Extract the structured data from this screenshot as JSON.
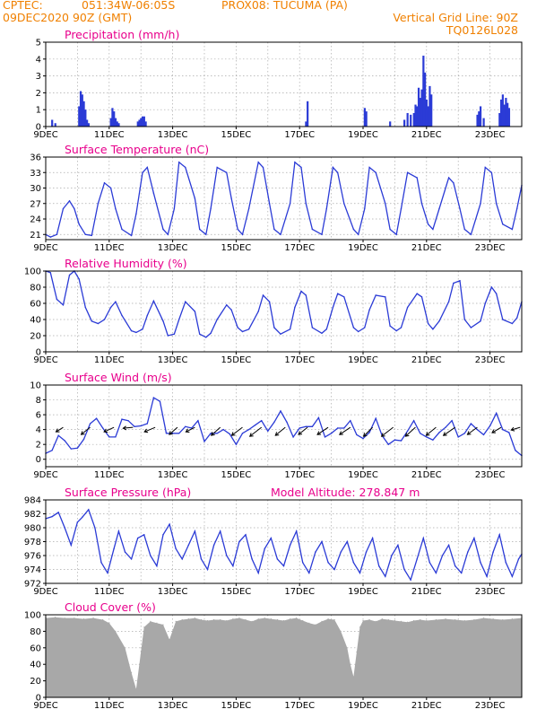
{
  "header": {
    "source": "CPTEC:",
    "coords": "051:34W-06:05S",
    "station": "PROX08: TUCUMA (PA)",
    "run": "09DEC2020 90Z (GMT)",
    "grid_note": "Vertical Grid Line: 90Z",
    "product_code": "TQ0126L028"
  },
  "x_ticks": [
    "9DEC",
    "11DEC",
    "13DEC",
    "15DEC",
    "17DEC",
    "19DEC",
    "21DEC",
    "23DEC"
  ],
  "colors": {
    "title": "#e8008c",
    "header": "#f08000",
    "series": "#2b3bd6",
    "cloud": "#a8a8a8",
    "grid": "#aaaaaa"
  },
  "chart_data": [
    {
      "id": "precip",
      "type": "bar",
      "title": "Precipitation (mm/h)",
      "ylim": [
        0,
        5
      ],
      "yticks": [
        0,
        1,
        2,
        3,
        4,
        5
      ],
      "x": [
        0.2,
        0.3,
        1.05,
        1.1,
        1.15,
        1.2,
        1.25,
        1.3,
        1.35,
        2.05,
        2.1,
        2.15,
        2.2,
        2.25,
        2.3,
        2.9,
        2.95,
        3.0,
        3.05,
        3.1,
        3.15,
        8.2,
        8.25,
        10.05,
        10.1,
        10.85,
        11.3,
        11.4,
        11.5,
        11.6,
        11.65,
        11.7,
        11.75,
        11.8,
        11.85,
        11.9,
        11.95,
        12.0,
        12.05,
        12.1,
        12.15,
        13.6,
        13.65,
        13.7,
        13.8,
        14.3,
        14.35,
        14.4,
        14.45,
        14.5,
        14.55,
        14.6
      ],
      "values": [
        0.4,
        0.2,
        1.2,
        2.1,
        1.9,
        1.5,
        1.0,
        0.4,
        0.2,
        0.5,
        1.1,
        0.9,
        0.5,
        0.3,
        0.2,
        0.3,
        0.4,
        0.5,
        0.6,
        0.6,
        0.3,
        0.3,
        1.5,
        1.1,
        0.9,
        0.3,
        0.4,
        0.8,
        0.7,
        0.8,
        1.3,
        1.2,
        2.3,
        1.7,
        2.2,
        4.2,
        3.2,
        1.6,
        1.2,
        2.4,
        1.9,
        0.7,
        0.9,
        1.2,
        0.5,
        0.8,
        1.6,
        1.9,
        1.3,
        1.7,
        1.4,
        1.1
      ]
    },
    {
      "id": "temp",
      "type": "line",
      "title": "Surface Temperature (nC)",
      "ylim": [
        20,
        36
      ],
      "yticks": [
        21,
        24,
        27,
        30,
        33,
        36
      ],
      "x": [
        0,
        0.15,
        0.35,
        0.55,
        0.75,
        0.9,
        1.05,
        1.25,
        1.45,
        1.65,
        1.85,
        2.05,
        2.2,
        2.4,
        2.7,
        2.85,
        3.05,
        3.2,
        3.4,
        3.7,
        3.85,
        4.05,
        4.2,
        4.4,
        4.7,
        4.85,
        5.05,
        5.2,
        5.4,
        5.7,
        5.85,
        6.05,
        6.2,
        6.4,
        6.7,
        6.85,
        7.05,
        7.2,
        7.4,
        7.7,
        7.85,
        8.05,
        8.2,
        8.4,
        8.7,
        8.85,
        9.05,
        9.2,
        9.4,
        9.7,
        9.85,
        10.05,
        10.2,
        10.4,
        10.7,
        10.85,
        11.05,
        11.2,
        11.4,
        11.7,
        11.85,
        12.05,
        12.2,
        12.4,
        12.7,
        12.85,
        13.05,
        13.2,
        13.4,
        13.7,
        13.85,
        14.05,
        14.2,
        14.4,
        14.7,
        14.85,
        15.0
      ],
      "values": [
        21,
        20.5,
        21,
        26,
        27.5,
        26,
        23,
        21,
        20.8,
        27,
        31,
        30,
        26,
        22,
        20.8,
        25,
        33,
        34,
        29,
        22,
        21,
        26,
        35,
        34,
        28,
        22,
        21,
        26,
        34,
        33,
        28,
        22,
        21,
        26,
        35,
        34,
        27,
        22,
        21,
        27,
        35,
        34,
        27,
        22,
        21,
        26,
        34,
        33,
        27,
        22,
        21,
        26,
        34,
        33,
        27,
        22,
        21,
        26,
        33,
        32,
        27,
        23,
        22,
        26,
        32,
        31,
        26,
        22,
        21,
        27,
        34,
        33,
        27,
        23,
        22,
        26,
        30.5
      ]
    },
    {
      "id": "rh",
      "type": "line",
      "title": "Relative Humidity (%)",
      "ylim": [
        0,
        100
      ],
      "yticks": [
        0,
        20,
        40,
        60,
        80,
        100
      ],
      "x": [
        0,
        0.15,
        0.35,
        0.55,
        0.75,
        0.9,
        1.05,
        1.25,
        1.45,
        1.65,
        1.85,
        2.05,
        2.2,
        2.4,
        2.7,
        2.85,
        3.05,
        3.2,
        3.4,
        3.7,
        3.85,
        4.05,
        4.2,
        4.4,
        4.7,
        4.85,
        5.05,
        5.2,
        5.4,
        5.7,
        5.85,
        6.05,
        6.2,
        6.4,
        6.7,
        6.85,
        7.05,
        7.2,
        7.4,
        7.7,
        7.85,
        8.05,
        8.2,
        8.4,
        8.7,
        8.85,
        9.05,
        9.2,
        9.4,
        9.7,
        9.85,
        10.05,
        10.2,
        10.4,
        10.7,
        10.85,
        11.05,
        11.2,
        11.4,
        11.7,
        11.85,
        12.05,
        12.2,
        12.4,
        12.7,
        12.85,
        13.05,
        13.2,
        13.4,
        13.7,
        13.85,
        14.05,
        14.2,
        14.4,
        14.7,
        14.85,
        15.0
      ],
      "values": [
        100,
        98,
        65,
        58,
        95,
        100,
        90,
        55,
        38,
        35,
        40,
        55,
        62,
        45,
        26,
        24,
        28,
        45,
        63,
        38,
        20,
        22,
        40,
        62,
        50,
        22,
        18,
        23,
        40,
        58,
        52,
        30,
        25,
        28,
        50,
        70,
        62,
        30,
        22,
        28,
        55,
        75,
        70,
        30,
        23,
        28,
        55,
        72,
        68,
        30,
        25,
        30,
        52,
        70,
        68,
        32,
        26,
        30,
        55,
        72,
        68,
        35,
        28,
        38,
        62,
        85,
        88,
        40,
        30,
        38,
        60,
        80,
        72,
        40,
        35,
        42,
        62
      ]
    },
    {
      "id": "wind",
      "type": "line",
      "title": "Surface Wind (m/s)",
      "ylim": [
        -1,
        10
      ],
      "yticks": [
        0,
        2,
        4,
        6,
        8,
        10
      ],
      "x": [
        0,
        0.2,
        0.4,
        0.6,
        0.8,
        1.0,
        1.2,
        1.4,
        1.6,
        1.8,
        2.0,
        2.2,
        2.4,
        2.6,
        2.8,
        3.0,
        3.2,
        3.4,
        3.6,
        3.8,
        4.0,
        4.2,
        4.4,
        4.6,
        4.8,
        5.0,
        5.2,
        5.4,
        5.6,
        5.8,
        6.0,
        6.2,
        6.4,
        6.6,
        6.8,
        7.0,
        7.2,
        7.4,
        7.6,
        7.8,
        8.0,
        8.2,
        8.4,
        8.6,
        8.8,
        9.0,
        9.2,
        9.4,
        9.6,
        9.8,
        10.0,
        10.2,
        10.4,
        10.6,
        10.8,
        11.0,
        11.2,
        11.4,
        11.6,
        11.8,
        12.0,
        12.2,
        12.4,
        12.6,
        12.8,
        13.0,
        13.2,
        13.4,
        13.6,
        13.8,
        14.0,
        14.2,
        14.4,
        14.6,
        14.8,
        15.0
      ],
      "values": [
        0.8,
        1.2,
        3.2,
        2.5,
        1.4,
        1.5,
        2.7,
        4.8,
        5.5,
        4.2,
        3.0,
        3.0,
        5.4,
        5.2,
        4.4,
        4.5,
        4.8,
        8.3,
        7.8,
        3.5,
        3.5,
        3.5,
        4.4,
        4.2,
        5.2,
        2.4,
        3.5,
        3.5,
        4.0,
        3.4,
        2.0,
        3.5,
        4.0,
        4.6,
        5.2,
        3.8,
        5.0,
        6.5,
        5.0,
        3.0,
        4.2,
        4.4,
        4.4,
        5.6,
        3.0,
        3.5,
        4.2,
        4.2,
        5.2,
        3.3,
        2.8,
        3.6,
        5.5,
        3.2,
        2.0,
        2.6,
        2.5,
        3.8,
        5.2,
        3.5,
        3.0,
        2.6,
        3.6,
        4.3,
        5.2,
        3.0,
        3.5,
        4.8,
        4.0,
        3.3,
        4.5,
        6.2,
        4.0,
        3.6,
        1.2,
        0.5
      ],
      "barbs": [
        {
          "x": 0.55,
          "dx": -8,
          "dy": 5
        },
        {
          "x": 1.4,
          "dx": -10,
          "dy": 8
        },
        {
          "x": 2.15,
          "dx": -11,
          "dy": 5
        },
        {
          "x": 2.75,
          "dx": -11,
          "dy": 1
        },
        {
          "x": 3.45,
          "dx": -12,
          "dy": 5
        },
        {
          "x": 4.15,
          "dx": -9,
          "dy": 8
        },
        {
          "x": 4.7,
          "dx": -10,
          "dy": 5
        },
        {
          "x": 5.5,
          "dx": -10,
          "dy": 9
        },
        {
          "x": 6.2,
          "dx": -12,
          "dy": 9
        },
        {
          "x": 6.8,
          "dx": -13,
          "dy": 10
        },
        {
          "x": 7.55,
          "dx": -11,
          "dy": 9
        },
        {
          "x": 8.25,
          "dx": -10,
          "dy": 8
        },
        {
          "x": 8.9,
          "dx": -12,
          "dy": 8
        },
        {
          "x": 9.6,
          "dx": -12,
          "dy": 8
        },
        {
          "x": 10.3,
          "dx": -10,
          "dy": 10
        },
        {
          "x": 10.95,
          "dx": -13,
          "dy": 10
        },
        {
          "x": 11.65,
          "dx": -11,
          "dy": 10
        },
        {
          "x": 12.3,
          "dx": -11,
          "dy": 9
        },
        {
          "x": 12.9,
          "dx": -13,
          "dy": 9
        },
        {
          "x": 13.6,
          "dx": -11,
          "dy": 8
        },
        {
          "x": 14.35,
          "dx": -10,
          "dy": 6
        },
        {
          "x": 14.95,
          "dx": -10,
          "dy": 3
        }
      ]
    },
    {
      "id": "pres",
      "type": "line",
      "title": "Surface Pressure (hPa)",
      "annotation": "Model Altitude: 278.847 m",
      "ylim": [
        972,
        984
      ],
      "yticks": [
        972,
        974,
        976,
        978,
        980,
        982,
        984
      ],
      "x": [
        0,
        0.2,
        0.4,
        0.6,
        0.8,
        1.0,
        1.15,
        1.35,
        1.55,
        1.75,
        1.95,
        2.15,
        2.3,
        2.5,
        2.7,
        2.9,
        3.1,
        3.3,
        3.5,
        3.7,
        3.9,
        4.1,
        4.3,
        4.5,
        4.7,
        4.9,
        5.1,
        5.3,
        5.5,
        5.7,
        5.9,
        6.1,
        6.3,
        6.5,
        6.7,
        6.9,
        7.1,
        7.3,
        7.5,
        7.7,
        7.9,
        8.1,
        8.3,
        8.5,
        8.7,
        8.9,
        9.1,
        9.3,
        9.5,
        9.7,
        9.9,
        10.1,
        10.3,
        10.5,
        10.7,
        10.9,
        11.1,
        11.3,
        11.5,
        11.7,
        11.9,
        12.1,
        12.3,
        12.5,
        12.7,
        12.9,
        13.1,
        13.3,
        13.5,
        13.7,
        13.9,
        14.1,
        14.3,
        14.5,
        14.7,
        14.9,
        15.0
      ],
      "values": [
        981.3,
        981.6,
        982.2,
        980.0,
        977.5,
        980.8,
        981.5,
        982.6,
        980.0,
        975.0,
        973.5,
        977.0,
        979.5,
        976.5,
        975.5,
        978.5,
        979.0,
        976.0,
        974.5,
        979.0,
        980.5,
        977.0,
        975.5,
        977.5,
        979.5,
        975.5,
        974.0,
        977.5,
        979.5,
        976.0,
        974.5,
        978.0,
        979.0,
        975.5,
        973.5,
        977.0,
        978.5,
        975.5,
        974.5,
        977.5,
        979.5,
        975.0,
        973.5,
        976.5,
        978.0,
        975.0,
        974.0,
        976.5,
        978.0,
        975.0,
        973.5,
        976.5,
        978.5,
        974.5,
        973.0,
        976.0,
        977.5,
        974.0,
        972.5,
        975.5,
        978.5,
        975.0,
        973.5,
        976.0,
        977.5,
        974.5,
        973.5,
        976.5,
        978.5,
        975.0,
        973.0,
        976.5,
        979.0,
        975.0,
        973.0,
        975.5,
        976.2
      ]
    },
    {
      "id": "cloud",
      "type": "area",
      "title": "Cloud Cover (%)",
      "ylim": [
        0,
        100
      ],
      "yticks": [
        0,
        20,
        40,
        60,
        80,
        100
      ],
      "x": [
        0,
        0.3,
        0.6,
        0.9,
        1.2,
        1.5,
        1.8,
        2.0,
        2.2,
        2.5,
        2.7,
        2.85,
        2.95,
        3.1,
        3.3,
        3.5,
        3.7,
        3.9,
        4.1,
        4.3,
        4.5,
        4.7,
        4.9,
        5.1,
        5.3,
        5.5,
        5.7,
        5.9,
        6.1,
        6.3,
        6.5,
        6.7,
        6.9,
        7.1,
        7.3,
        7.5,
        7.7,
        7.9,
        8.1,
        8.3,
        8.5,
        8.7,
        8.9,
        9.1,
        9.3,
        9.5,
        9.6,
        9.7,
        9.8,
        9.9,
        10.0,
        10.2,
        10.4,
        10.6,
        10.8,
        11.0,
        11.2,
        11.4,
        11.6,
        11.8,
        12.0,
        12.3,
        12.6,
        12.9,
        13.2,
        13.5,
        13.8,
        14.1,
        14.4,
        14.7,
        15.0
      ],
      "values": [
        96,
        97,
        96,
        96,
        95,
        96,
        94,
        90,
        80,
        60,
        30,
        10,
        40,
        85,
        92,
        90,
        88,
        70,
        92,
        94,
        95,
        96,
        94,
        93,
        94,
        94,
        93,
        95,
        96,
        94,
        92,
        95,
        96,
        95,
        94,
        93,
        95,
        96,
        93,
        90,
        88,
        92,
        95,
        94,
        80,
        60,
        40,
        25,
        55,
        85,
        93,
        94,
        92,
        95,
        94,
        93,
        92,
        91,
        93,
        94,
        93,
        94,
        95,
        94,
        93,
        94,
        96,
        95,
        94,
        95,
        96
      ]
    }
  ]
}
